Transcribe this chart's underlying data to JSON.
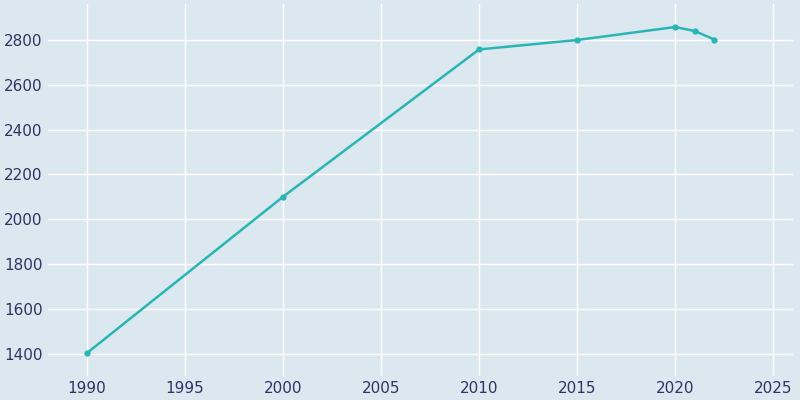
{
  "years": [
    1990,
    2000,
    2010,
    2015,
    2020,
    2021,
    2022
  ],
  "population": [
    1402,
    2100,
    2758,
    2800,
    2858,
    2840,
    2802
  ],
  "line_color": "#2ab5b5",
  "marker": "o",
  "marker_size": 3.5,
  "line_width": 1.8,
  "bg_color": "#dce8f0",
  "plot_bg_color": "#dce8f0",
  "grid_color": "#ffffff",
  "tick_color": "#2d3561",
  "xlim": [
    1988,
    2026
  ],
  "ylim": [
    1300,
    2960
  ],
  "xticks": [
    1990,
    1995,
    2000,
    2005,
    2010,
    2015,
    2020,
    2025
  ],
  "yticks": [
    1400,
    1600,
    1800,
    2000,
    2200,
    2400,
    2600,
    2800
  ],
  "tick_fontsize": 11
}
